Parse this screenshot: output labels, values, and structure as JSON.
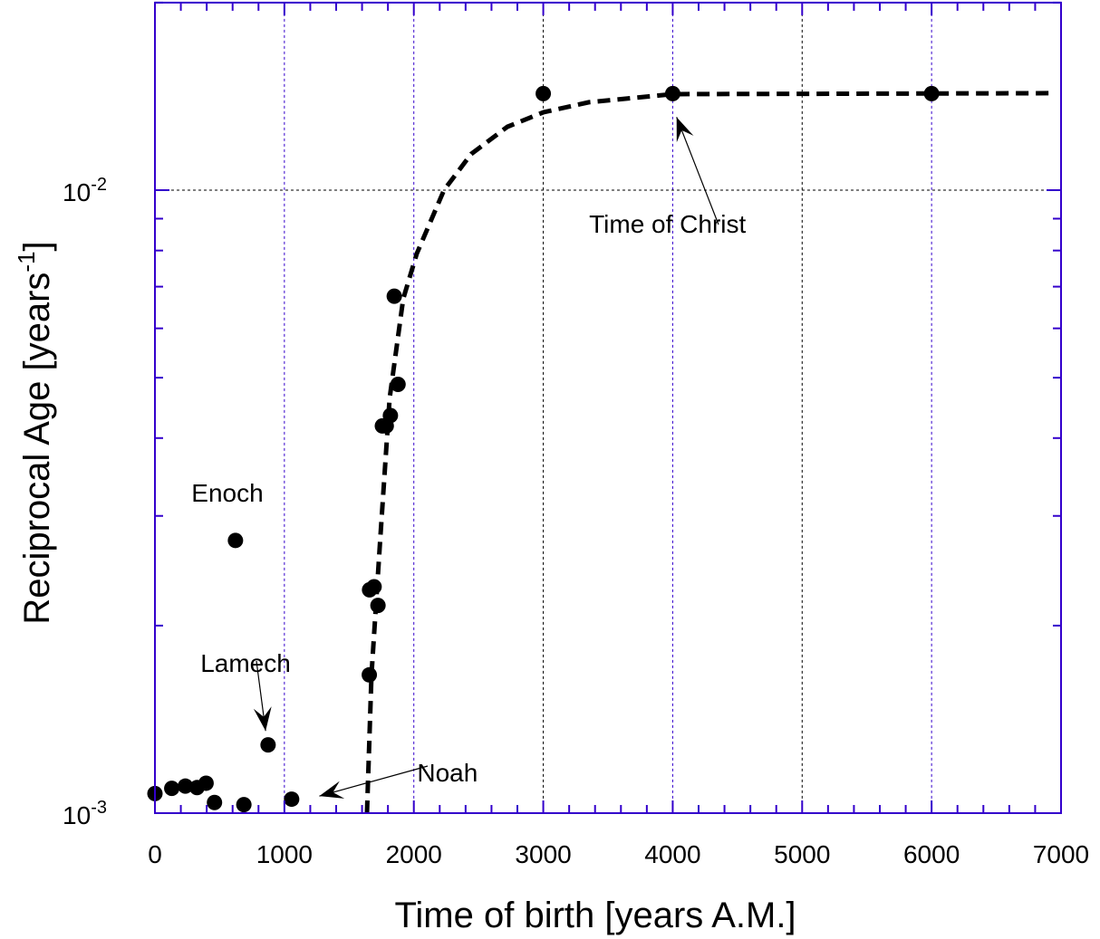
{
  "chart_data": {
    "type": "scatter",
    "title": "",
    "xlabel": "Time of birth [years A.M.]",
    "ylabel": "Reciprocal Age [years",
    "ylabel_superscript": "-1",
    "ylabel_suffix": "]",
    "xlim": [
      0,
      7000
    ],
    "ylim": [
      0.001,
      0.02
    ],
    "yscale": "log",
    "x_ticks": [
      "0",
      "1000",
      "2000",
      "3000",
      "4000",
      "5000",
      "6000",
      "7000"
    ],
    "y_ticks": [
      {
        "base": "10",
        "exp": "-3",
        "value": 0.001
      },
      {
        "base": "10",
        "exp": "-2",
        "value": 0.01
      }
    ],
    "grid": true,
    "colors": {
      "axis": "#3300cc",
      "grid_blue": "#3300cc",
      "grid_black": "#000000",
      "marker": "#000000",
      "fit": "#000000"
    },
    "points": {
      "x": [
        0,
        130,
        235,
        325,
        395,
        460,
        622,
        687,
        874,
        1056,
        1656,
        1658,
        1693,
        1723,
        1757,
        1787,
        1819,
        1849,
        1878,
        3000,
        4000,
        6000
      ],
      "y": [
        0.001075,
        0.001096,
        0.001105,
        0.001099,
        0.001117,
        0.00104,
        0.00274,
        0.001032,
        0.001287,
        0.001053,
        0.001667,
        0.002283,
        0.002309,
        0.002155,
        0.004184,
        0.004184,
        0.004348,
        0.006757,
        0.004878,
        0.01429,
        0.01429,
        0.01429
      ]
    },
    "fit_curve": {
      "style": "dashed",
      "x": [
        1638,
        1673,
        1743,
        1813,
        1918,
        2023,
        2233,
        2443,
        2723,
        3003,
        3353,
        4000,
        6923
      ],
      "y": [
        0.001,
        0.001669,
        0.002804,
        0.004632,
        0.006693,
        0.00791,
        0.01,
        0.01143,
        0.01264,
        0.01334,
        0.01384,
        0.01426,
        0.01431
      ]
    },
    "annotations": [
      {
        "text": "Enoch",
        "x": 560,
        "y": 0.00316,
        "arrow": false
      },
      {
        "text": "Lamech",
        "x": 700,
        "y": 0.001685,
        "arrow": true,
        "arrow_to_x": 855,
        "arrow_to_y": 0.001355
      },
      {
        "text": "Noah",
        "x": 2260,
        "y": 0.001125,
        "arrow": true,
        "arrow_to_x": 1270,
        "arrow_to_y": 0.001065
      },
      {
        "text": "Time of Christ",
        "x": 3960,
        "y": 0.00855,
        "arrow": true,
        "arrow_to_x": 4030,
        "arrow_to_y": 0.0131
      }
    ]
  }
}
